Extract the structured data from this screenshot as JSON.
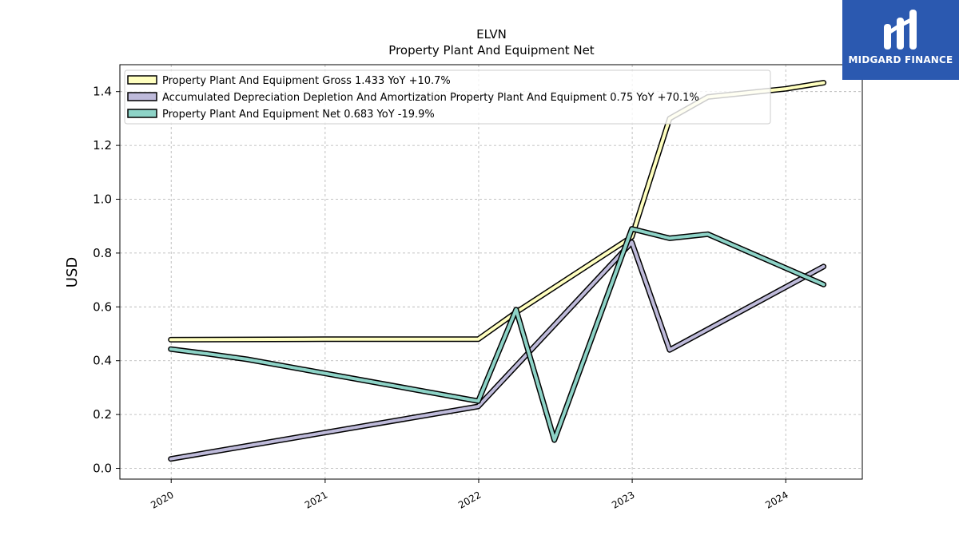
{
  "brand": {
    "name": "MIDGARD FINANCE",
    "bg_color": "#2b59b0"
  },
  "chart_data": {
    "type": "line",
    "title_line1": "ELVN",
    "title_line2": "Property Plant And Equipment Net",
    "ylabel": "USD",
    "ylim": [
      -0.04,
      1.5
    ],
    "yticks": [
      "0.0",
      "0.2",
      "0.4",
      "0.6",
      "0.8",
      "1.0",
      "1.2",
      "1.4"
    ],
    "xticks": [
      "2020",
      "2021",
      "2022",
      "2023",
      "2024"
    ],
    "grid": true,
    "legend_position": "top-left",
    "series": [
      {
        "name": "Property Plant And Equipment Gross",
        "legend": "Property Plant And Equipment Gross  1.433 YoY +10.7%",
        "color": "#ffffbf",
        "x": [
          "2019-12-31",
          "2020-12-31",
          "2021-12-31",
          "2022-03-31",
          "2022-12-31",
          "2023-03-31",
          "2023-06-30",
          "2023-12-31",
          "2024-03-31"
        ],
        "y": [
          0.478,
          0.48,
          0.48,
          0.58,
          0.86,
          1.3,
          1.38,
          1.41,
          1.433
        ]
      },
      {
        "name": "Accumulated Depreciation Depletion And Amortization Property Plant And Equipment",
        "legend": "Accumulated Depreciation Depletion And Amortization Property Plant And Equipment  0.75 YoY +70.1%",
        "color": "#bebada",
        "x": [
          "2019-12-31",
          "2021-12-31",
          "2022-12-31",
          "2023-03-31",
          "2024-03-31"
        ],
        "y": [
          0.035,
          0.23,
          0.84,
          0.44,
          0.75
        ]
      },
      {
        "name": "Property Plant And Equipment Net",
        "legend": "Property Plant And Equipment Net  0.683 YoY -19.9%",
        "color": "#8dd3c7",
        "x": [
          "2019-12-31",
          "2020-03-31",
          "2020-06-30",
          "2021-12-31",
          "2022-03-31",
          "2022-06-30",
          "2022-12-31",
          "2023-03-31",
          "2023-06-30",
          "2024-03-31"
        ],
        "y": [
          0.443,
          0.425,
          0.405,
          0.25,
          0.59,
          0.105,
          0.89,
          0.855,
          0.87,
          0.683
        ]
      }
    ]
  }
}
